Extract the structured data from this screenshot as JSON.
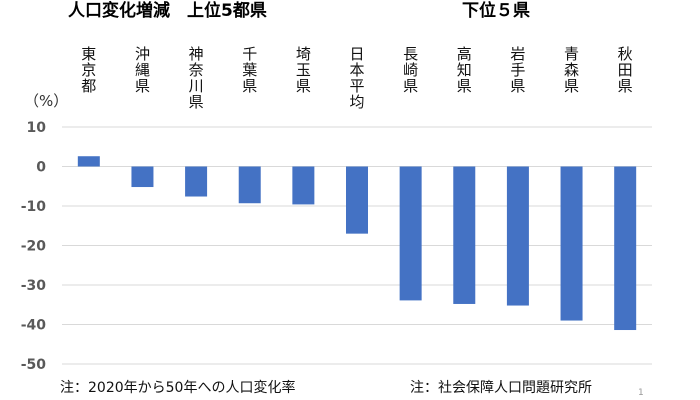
{
  "headings": {
    "left": "人口変化増減　上位5都県",
    "right": "下位５県"
  },
  "notes": {
    "left": "注：2020年から50年への人口変化率",
    "right": "注：社会保障人口問題研究所"
  },
  "page_number": "1",
  "colors": {
    "bar": "#4472C4",
    "grid": "#d9d9d9",
    "axis_text": "#595959"
  },
  "chart_data": {
    "type": "bar",
    "unit_label": "（%）",
    "categories": [
      "東京都",
      "沖縄県",
      "神奈川県",
      "千葉県",
      "埼玉県",
      "日本平均",
      "長崎県",
      "高知県",
      "岩手県",
      "青森県",
      "秋田県"
    ],
    "values": [
      2.6,
      -5.2,
      -7.6,
      -9.3,
      -9.6,
      -17.0,
      -33.9,
      -34.8,
      -35.2,
      -39.0,
      -41.4
    ],
    "ylim": [
      -50,
      10
    ],
    "yticks": [
      10,
      0,
      -10,
      -20,
      -30,
      -40,
      -50
    ],
    "grid": true,
    "legend": "none"
  }
}
